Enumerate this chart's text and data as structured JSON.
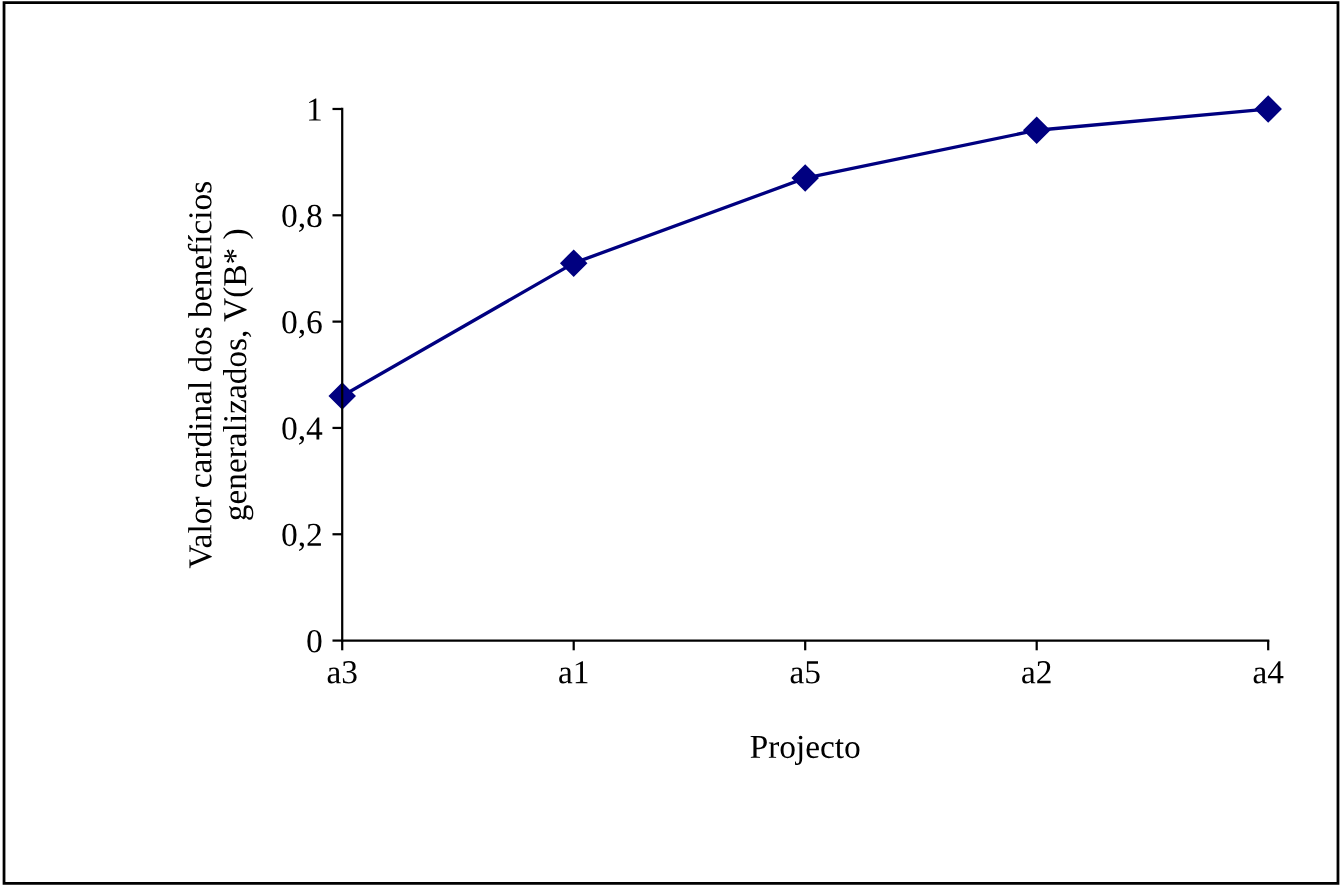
{
  "chart_data": {
    "type": "line",
    "xlabel": "Projecto",
    "ylabel": "Valor cardinal dos benefícios\ngeneralizados, V(B* )",
    "categories": [
      "a3",
      "a1",
      "a5",
      "a2",
      "a4"
    ],
    "series": [
      {
        "color": "#000080",
        "values": [
          0.46,
          0.71,
          0.87,
          0.96,
          1.0
        ]
      }
    ],
    "ylim": [
      0,
      1
    ],
    "yticks": [
      0,
      {
        "value": 0.2,
        "label": "0,2"
      },
      {
        "value": 0.4,
        "label": "0,4"
      },
      {
        "value": 0.6,
        "label": "0,6"
      },
      {
        "value": 0.8,
        "label": "0,8"
      },
      1
    ],
    "marker": "diamond",
    "line_style": "solid",
    "grid": false,
    "legend": false
  }
}
